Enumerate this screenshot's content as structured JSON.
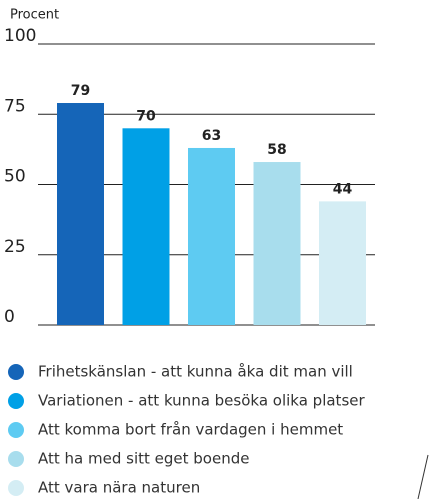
{
  "chart_data": {
    "type": "bar",
    "y_label": "Procent",
    "categories": [
      "Frihetskänslan - att kunna åka dit man vill",
      "Variationen - att kunna besöka olika platser",
      "Att komma bort från vardagen i hemmet",
      "Att ha med sitt eget boende",
      "Att vara nära naturen"
    ],
    "values": [
      79,
      70,
      63,
      58,
      44
    ],
    "colors": [
      "#1565b8",
      "#00a0e6",
      "#5ecbf2",
      "#a8dded",
      "#d4edf4"
    ],
    "ylim": [
      0,
      100
    ],
    "yticks": [
      0,
      25,
      50,
      75,
      100
    ],
    "grid": true
  }
}
